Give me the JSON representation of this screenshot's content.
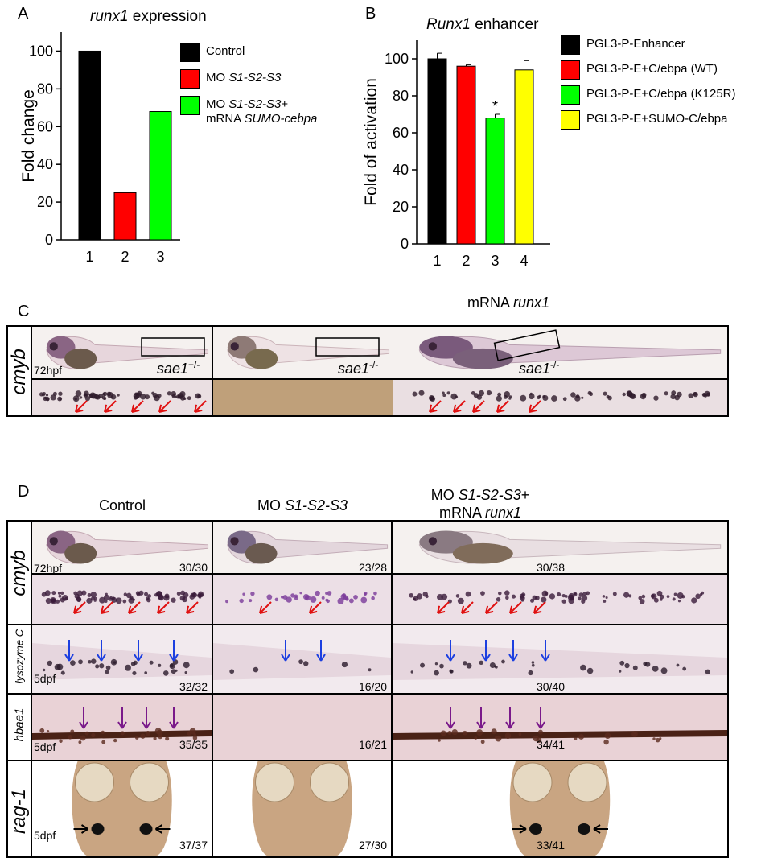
{
  "panelA": {
    "letter": "A",
    "title_gene": "runx1",
    "title_rest": " expression",
    "legend": [
      {
        "parts": [
          {
            "t": "Control",
            "i": false
          }
        ],
        "color": "#000000"
      },
      {
        "parts": [
          {
            "t": "MO ",
            "i": false
          },
          {
            "t": "S1-S2-S3",
            "i": true
          }
        ],
        "color": "#ff0000"
      },
      {
        "parts": [
          {
            "t": "MO ",
            "i": false
          },
          {
            "t": "S1-S2-S3",
            "i": true
          },
          {
            "t": "+",
            "i": false
          }
        ],
        "parts2": [
          {
            "t": "mRNA ",
            "i": false
          },
          {
            "t": "SUMO-cebpa",
            "i": true
          }
        ],
        "color": "#00ff00"
      }
    ]
  },
  "panelB": {
    "letter": "B",
    "title_gene": "Runx1",
    "title_rest": " enhancer",
    "legend": [
      {
        "label": "PGL3-P-Enhancer",
        "color": "#000000"
      },
      {
        "label": "PGL3-P-E+C/ebpa (WT)",
        "color": "#ff0000"
      },
      {
        "label": "PGL3-P-E+C/ebpa (K125R)",
        "color": "#00ff00"
      },
      {
        "label": "PGL3-P-E+SUMO-C/ebpa",
        "color": "#ffff00"
      }
    ]
  },
  "chart_data": [
    {
      "type": "bar",
      "categories": [
        "1",
        "2",
        "3"
      ],
      "values": [
        100,
        25,
        68
      ],
      "colors": [
        "#000000",
        "#ff0000",
        "#00ff00"
      ],
      "title": "runx1 expression",
      "xlabel": "",
      "ylabel": "Fold change",
      "yticks": [
        "0",
        "20",
        "40",
        "60",
        "80",
        "100"
      ],
      "ylim": [
        0,
        110
      ]
    },
    {
      "type": "bar",
      "categories": [
        "1",
        "2",
        "3",
        "4"
      ],
      "values": [
        100,
        96,
        68,
        94
      ],
      "errors": [
        3,
        0.8,
        2,
        5
      ],
      "colors": [
        "#000000",
        "#ff0000",
        "#00ff00",
        "#ffff00"
      ],
      "significance": [
        "",
        "",
        "*",
        ""
      ],
      "title": "Runx1 enhancer",
      "xlabel": "",
      "ylabel": "Fold of activation",
      "yticks": [
        "0",
        "20",
        "40",
        "60",
        "80",
        "100"
      ],
      "ylim": [
        0,
        110
      ]
    }
  ],
  "panelC": {
    "letter": "C",
    "header_pre": "mRNA ",
    "header_gene": "runx1",
    "row_label": "cmyb",
    "stage": "72hpf",
    "genotypes": [
      {
        "base": "sae1",
        "sup": "+/-"
      },
      {
        "base": "sae1",
        "sup": "-/-"
      },
      {
        "base": "sae1",
        "sup": "-/-"
      }
    ]
  },
  "panelD": {
    "letter": "D",
    "col_control": "Control",
    "col_mo_pre": "MO ",
    "col_mo_gene": "S1-S2-S3",
    "col_rescue_l1_pre": "MO ",
    "col_rescue_l1_gene": "S1-S2-S3",
    "col_rescue_l1_post": "+",
    "col_rescue_l2_pre": "mRNA ",
    "col_rescue_l2_gene": "runx1",
    "rows": [
      {
        "label": "cmyb",
        "stage": "72hpf",
        "scores": [
          "30/30",
          "23/28",
          "30/38"
        ]
      },
      {
        "label": "lysozyme C",
        "stage": "5dpf",
        "scores": [
          "32/32",
          "16/20",
          "30/40"
        ]
      },
      {
        "label": "hbae1",
        "stage": "5dpf",
        "scores": [
          "35/35",
          "16/21",
          "34/41"
        ]
      },
      {
        "label": "rag-1",
        "stage": "5dpf",
        "scores": [
          "37/37",
          "27/30",
          "33/41"
        ]
      }
    ]
  }
}
